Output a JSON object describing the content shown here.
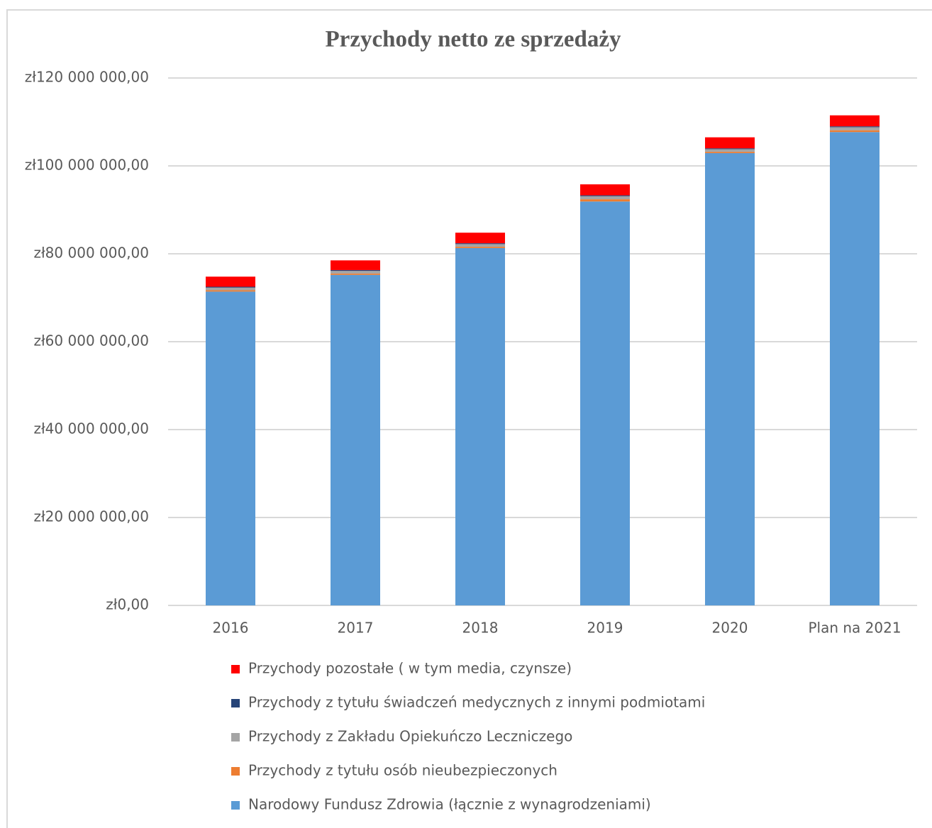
{
  "chart_data": {
    "type": "stacked_bar",
    "title": "Przychody netto ze sprzedaży",
    "categories": [
      "2016",
      "2017",
      "2018",
      "2019",
      "2020",
      "Plan na 2021"
    ],
    "series": [
      {
        "name": "Narodowy Fundusz Zdrowia (łącznie z wynagrodzeniami)",
        "color": "#5b9bd5",
        "values": [
          71400000,
          75200000,
          81300000,
          91900000,
          102900000,
          107700000
        ]
      },
      {
        "name": "Przychody z tytułu osób nieubezpieczonych",
        "color": "#ed7d31",
        "values": [
          300000,
          300000,
          300000,
          500000,
          300000,
          400000
        ]
      },
      {
        "name": "Przychody z Zakładu Opiekuńczo Leczniczego",
        "color": "#a5a5a5",
        "values": [
          600000,
          600000,
          600000,
          700000,
          600000,
          700000
        ]
      },
      {
        "name": "Przychody z tytułu świadczeń medycznych z innymi podmiotami",
        "color": "#264478",
        "values": [
          200000,
          200000,
          200000,
          200000,
          200000,
          200000
        ]
      },
      {
        "name": "Przychody pozostałe ( w tym media, czynsze)",
        "color": "#ff0000",
        "values": [
          2300000,
          2200000,
          2400000,
          2500000,
          2500000,
          2500000
        ]
      }
    ],
    "ylim": [
      0,
      120000000
    ],
    "yticks": [
      {
        "value": 0,
        "label": "zł0,00"
      },
      {
        "value": 20000000,
        "label": "zł20 000 000,00"
      },
      {
        "value": 40000000,
        "label": "zł40 000 000,00"
      },
      {
        "value": 60000000,
        "label": "zł60 000 000,00"
      },
      {
        "value": 80000000,
        "label": "zł80 000 000,00"
      },
      {
        "value": 100000000,
        "label": "zł100 000 000,00"
      },
      {
        "value": 120000000,
        "label": "zł120 000 000,00"
      }
    ],
    "grid": true
  }
}
